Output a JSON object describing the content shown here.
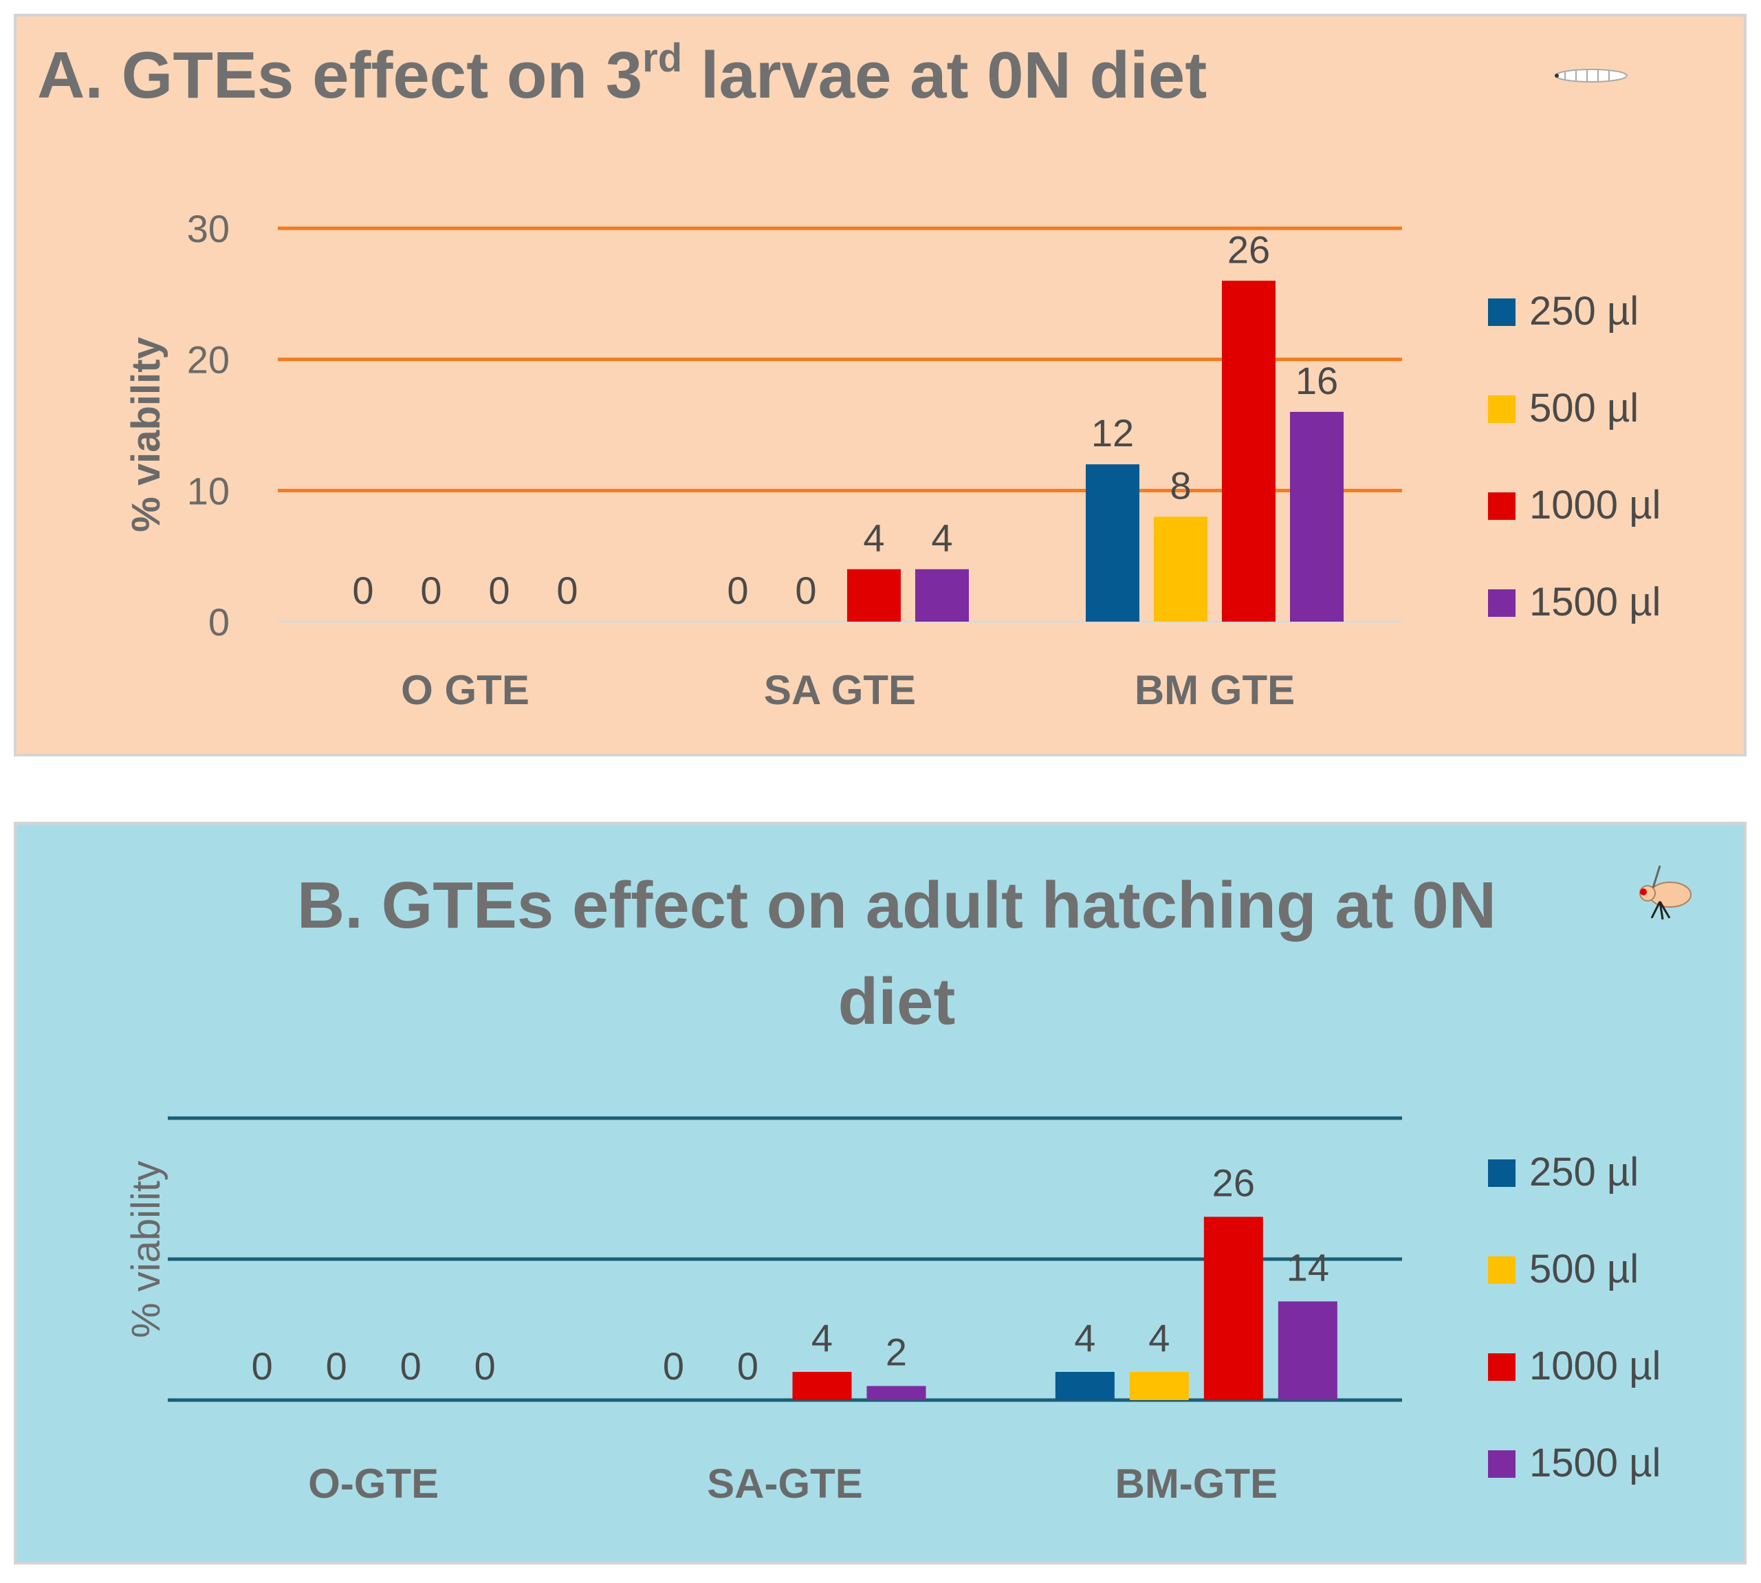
{
  "chart_data": [
    {
      "type": "bar",
      "title": "A. GTEs effect on 3rd larvae at 0N diet",
      "title_main": "A. GTEs effect on 3",
      "title_sup": "rd",
      "title_rest": " larvae at 0N diet",
      "ylabel": "%  viability",
      "xlabel": "",
      "ylim": [
        0,
        30
      ],
      "yticks": [
        0,
        10,
        20,
        30
      ],
      "grid": true,
      "legend_position": "right",
      "background": "#fbd5b5",
      "gridline_color": "#f47a20",
      "categories": [
        "O GTE",
        "SA GTE",
        "BM GTE"
      ],
      "series": [
        {
          "name": "250 µl",
          "color": "#045a91",
          "values": [
            0,
            0,
            12
          ]
        },
        {
          "name": "500 µl",
          "color": "#ffc000",
          "values": [
            0,
            0,
            8
          ]
        },
        {
          "name": "1000 µl",
          "color": "#e00000",
          "values": [
            0,
            4,
            26
          ]
        },
        {
          "name": "1500 µl",
          "color": "#7d2ba1",
          "values": [
            0,
            4,
            16
          ]
        }
      ]
    },
    {
      "type": "bar",
      "title": "B. GTEs effect on adult hatching at 0N diet",
      "title_line1": "B. GTEs effect on adult hatching at 0N",
      "title_line2": "diet",
      "ylabel": "%  viability",
      "xlabel": "",
      "ylim": [
        0,
        40
      ],
      "yticks": [],
      "grid": true,
      "legend_position": "right",
      "background": "#a8dde8",
      "gridline_color": "#1b5e74",
      "categories": [
        "O-GTE",
        "SA-GTE",
        "BM-GTE"
      ],
      "series": [
        {
          "name": "250 µl",
          "color": "#045a91",
          "values": [
            0,
            0,
            4
          ]
        },
        {
          "name": "500 µl",
          "color": "#ffc000",
          "values": [
            0,
            0,
            4
          ]
        },
        {
          "name": "1000 µl",
          "color": "#e00000",
          "values": [
            0,
            4,
            26
          ]
        },
        {
          "name": "1500 µl",
          "color": "#7d2ba1",
          "values": [
            0,
            2,
            14
          ]
        }
      ]
    }
  ]
}
